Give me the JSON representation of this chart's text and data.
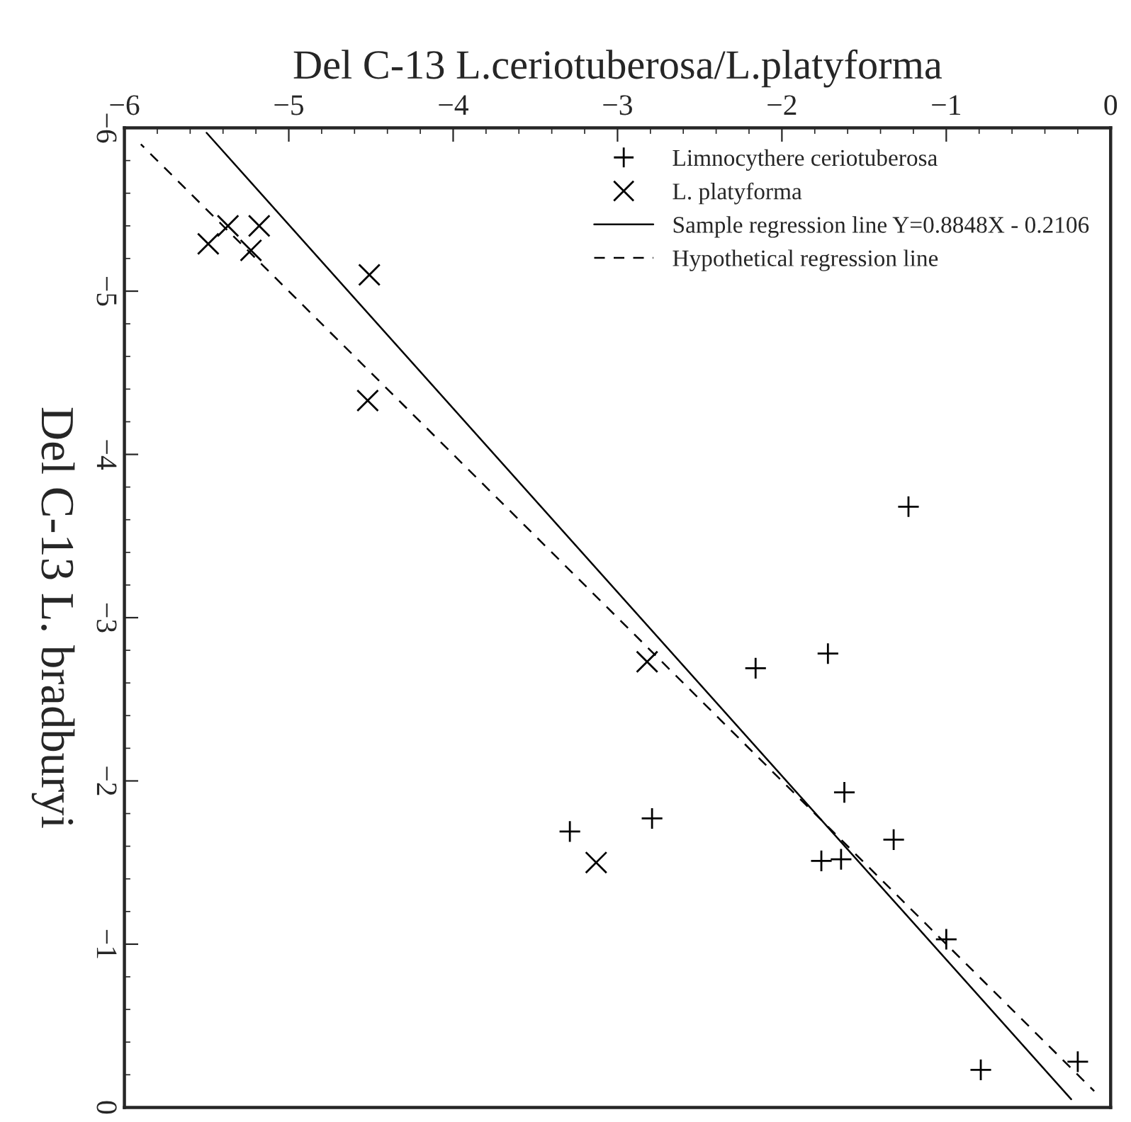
{
  "chart_data": {
    "type": "scatter",
    "xlabel": "Del C-13 L.ceriotuberosa/L.platyforma",
    "ylabel": "Del C-13 L. bradburyi",
    "xlim": [
      -6,
      0
    ],
    "xticks": [
      -6,
      -5,
      -4,
      -3,
      -2,
      -1,
      0
    ],
    "ylim": [
      0,
      -6
    ],
    "yticks": [
      -6,
      -5,
      -4,
      -3,
      -2,
      -1,
      0
    ],
    "grid": false,
    "legend": "top right",
    "series": [
      {
        "name": "Limnocythere ceriotuberosa",
        "type": "scatter",
        "marker": "plus",
        "color": "#000000",
        "x": [
          -3.29,
          -2.79,
          -2.16,
          -1.72,
          -1.23,
          -1.62,
          -1.76,
          -1.64,
          -1.32,
          -1.0,
          -0.79,
          -0.2
        ],
        "values": [
          -1.69,
          -1.77,
          -2.69,
          -2.78,
          -3.68,
          -1.93,
          -1.51,
          -1.52,
          -1.64,
          -1.03,
          -0.23,
          -0.28
        ]
      },
      {
        "name": "L. platyforma",
        "type": "scatter",
        "marker": "cross",
        "color": "#000000",
        "x": [
          -5.37,
          -5.18,
          -5.49,
          -5.23,
          -4.51,
          -4.52,
          -2.82,
          -3.13
        ],
        "values": [
          -5.4,
          -5.4,
          -5.29,
          -5.25,
          -5.1,
          -4.33,
          -2.73,
          -1.5
        ]
      },
      {
        "name": "Sample regression line Y=0.8848X - 0.2106",
        "type": "line",
        "line_style": "solid",
        "color": "#000000",
        "x": [
          -5.5,
          -0.24
        ],
        "values": [
          -5.97,
          -0.05
        ]
      },
      {
        "name": "Hypothetical regression line",
        "type": "line",
        "line_style": "dashed",
        "color": "#000000",
        "x": [
          -5.9,
          -0.1
        ],
        "values": [
          -5.9,
          -0.1
        ]
      }
    ]
  }
}
